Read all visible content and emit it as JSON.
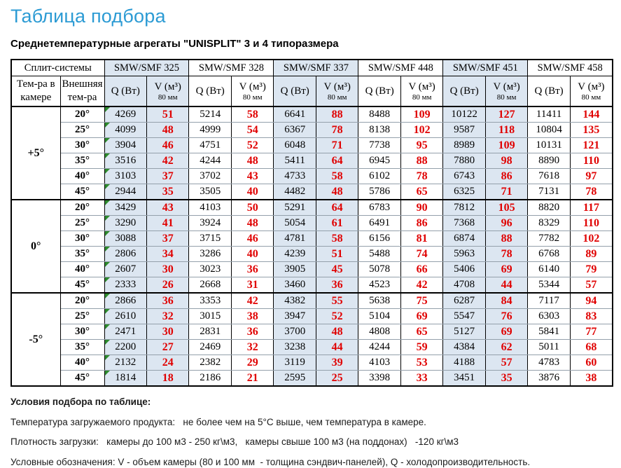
{
  "page": {
    "title": "Таблица подбора",
    "subtitle": "Среднетемпературные агрегаты \"UNISPLIT\" 3 и 4 типоразмера"
  },
  "colors": {
    "title_blue": "#2c9bd4",
    "column_tint": "#dce6f1",
    "value_red": "#e00000",
    "triangle_green": "#2e8b2e"
  },
  "table": {
    "corner_header": "Сплит-системы",
    "col1_header": "Тем-ра в камере",
    "col2_header": "Внешняя тем-ра",
    "models": [
      "SMW/SMF 325",
      "SMW/SMF 328",
      "SMW/SMF 337",
      "SMW/SMF 448",
      "SMW/SMF 451",
      "SMW/SMF 458"
    ],
    "q_header": "Q (Вт)",
    "v_header": "V (м³)",
    "v_subheader": "80 мм",
    "groups": [
      {
        "label": "+5°",
        "rows": [
          {
            "t": "20°",
            "v": [
              4269,
              51,
              5214,
              58,
              6641,
              88,
              8488,
              109,
              10122,
              127,
              11411,
              144
            ]
          },
          {
            "t": "25°",
            "v": [
              4099,
              48,
              4999,
              54,
              6367,
              78,
              8138,
              102,
              9587,
              118,
              10804,
              135
            ]
          },
          {
            "t": "30°",
            "v": [
              3904,
              46,
              4751,
              52,
              6048,
              71,
              7738,
              95,
              8989,
              109,
              10131,
              121
            ]
          },
          {
            "t": "35°",
            "v": [
              3516,
              42,
              4244,
              48,
              5411,
              64,
              6945,
              88,
              7880,
              98,
              8890,
              110
            ]
          },
          {
            "t": "40°",
            "v": [
              3103,
              37,
              3702,
              43,
              4733,
              58,
              6102,
              78,
              6743,
              86,
              7618,
              97
            ]
          },
          {
            "t": "45°",
            "v": [
              2944,
              35,
              3505,
              40,
              4482,
              48,
              5786,
              65,
              6325,
              71,
              7131,
              78
            ]
          }
        ]
      },
      {
        "label": "0°",
        "rows": [
          {
            "t": "20°",
            "v": [
              3429,
              43,
              4103,
              50,
              5291,
              64,
              6783,
              90,
              7812,
              105,
              8820,
              117
            ]
          },
          {
            "t": "25°",
            "v": [
              3290,
              41,
              3924,
              48,
              5054,
              61,
              6491,
              86,
              7368,
              96,
              8329,
              110
            ]
          },
          {
            "t": "30°",
            "v": [
              3088,
              37,
              3715,
              46,
              4781,
              58,
              6156,
              81,
              6874,
              88,
              7782,
              102
            ]
          },
          {
            "t": "35°",
            "v": [
              2806,
              34,
              3286,
              40,
              4239,
              51,
              5488,
              74,
              5963,
              78,
              6768,
              89
            ]
          },
          {
            "t": "40°",
            "v": [
              2607,
              30,
              3023,
              36,
              3905,
              45,
              5078,
              66,
              5406,
              69,
              6140,
              79
            ]
          },
          {
            "t": "45°",
            "v": [
              2333,
              26,
              2668,
              31,
              3460,
              36,
              4523,
              42,
              4708,
              44,
              5344,
              57
            ]
          }
        ]
      },
      {
        "label": "-5°",
        "rows": [
          {
            "t": "20°",
            "v": [
              2866,
              36,
              3353,
              42,
              4382,
              55,
              5638,
              75,
              6287,
              84,
              7117,
              94
            ]
          },
          {
            "t": "25°",
            "v": [
              2610,
              32,
              3015,
              38,
              3947,
              52,
              5104,
              69,
              5547,
              76,
              6303,
              83
            ]
          },
          {
            "t": "30°",
            "v": [
              2471,
              30,
              2831,
              36,
              3700,
              48,
              4808,
              65,
              5127,
              69,
              5841,
              77
            ]
          },
          {
            "t": "35°",
            "v": [
              2200,
              27,
              2469,
              32,
              3238,
              44,
              4244,
              59,
              4384,
              62,
              5011,
              68
            ]
          },
          {
            "t": "40°",
            "v": [
              2132,
              24,
              2382,
              29,
              3119,
              39,
              4103,
              53,
              4188,
              57,
              4783,
              60
            ]
          },
          {
            "t": "45°",
            "v": [
              1814,
              18,
              2186,
              21,
              2595,
              25,
              3398,
              33,
              3451,
              35,
              3876,
              38
            ]
          }
        ]
      }
    ]
  },
  "notes": {
    "title": "Условия подбора по таблице:",
    "lines": [
      "Температура загружаемого продукта:   не более чем на 5°С выше, чем температура в камере.",
      "Плотность загрузки:   камеры до 100 м3 - 250 кг\\м3,   камеры свыше 100 м3 (на поддонах)   -120 кг\\м3",
      "Условные обозначения: V - объем камеры (80 и 100 мм  - толщина сэндвич-панелей), Q - холодопроизводительность."
    ]
  }
}
